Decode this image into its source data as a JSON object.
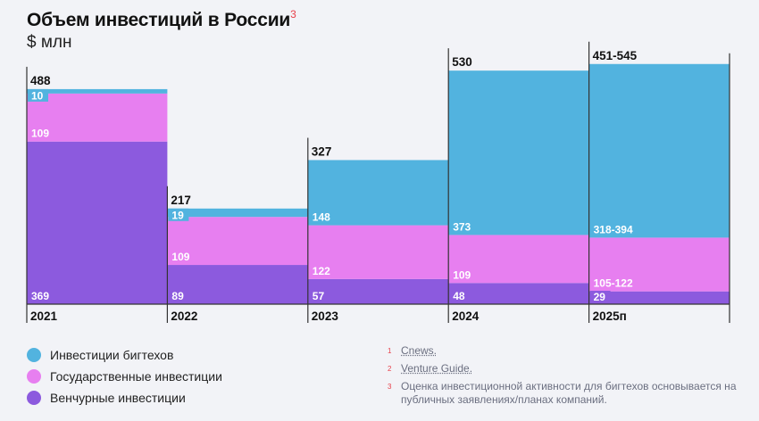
{
  "title": "Объем инвестиций в России",
  "title_footnote": "3",
  "subtitle": "$ млн",
  "colors": {
    "bigtech": "#52b3df",
    "government": "#e77ff0",
    "venture": "#8c5ade"
  },
  "chart_data": {
    "type": "bar",
    "stacked": true,
    "categories": [
      "2021",
      "2022",
      "2023",
      "2024",
      "2025п"
    ],
    "series": [
      {
        "name": "Венчурные инвестиции",
        "color": "#8c5ade",
        "values": [
          369,
          89,
          57,
          48,
          29
        ],
        "labels": [
          "369",
          "89",
          "57",
          "48",
          "29"
        ]
      },
      {
        "name": "Государственные инвестиции",
        "color": "#e77ff0",
        "values": [
          109,
          109,
          122,
          109,
          [
            105,
            122
          ]
        ],
        "labels": [
          "109",
          "109",
          "122",
          "109",
          "105-122"
        ]
      },
      {
        "name": "Инвестиции бигтехов",
        "color": "#52b3df",
        "values": [
          10,
          19,
          148,
          373,
          [
            318,
            394
          ]
        ],
        "labels": [
          "10",
          "19",
          "148",
          "373",
          "318-394"
        ]
      }
    ],
    "totals": [
      "488",
      "217",
      "327",
      "530",
      "451-545"
    ],
    "legend": "bottom-left"
  },
  "legend": [
    {
      "label": "Инвестиции бигтехов",
      "color": "#52b3df"
    },
    {
      "label": "Государственные инвестиции",
      "color": "#e77ff0"
    },
    {
      "label": "Венчурные инвестиции",
      "color": "#8c5ade"
    }
  ],
  "footnotes": [
    {
      "num": "1",
      "text": "Cnews."
    },
    {
      "num": "2",
      "text": "Venture Guide."
    },
    {
      "num": "3",
      "text": "Оценка инвестиционной активности для бигтехов основывается на публичных заявлениях/планах компаний."
    }
  ]
}
